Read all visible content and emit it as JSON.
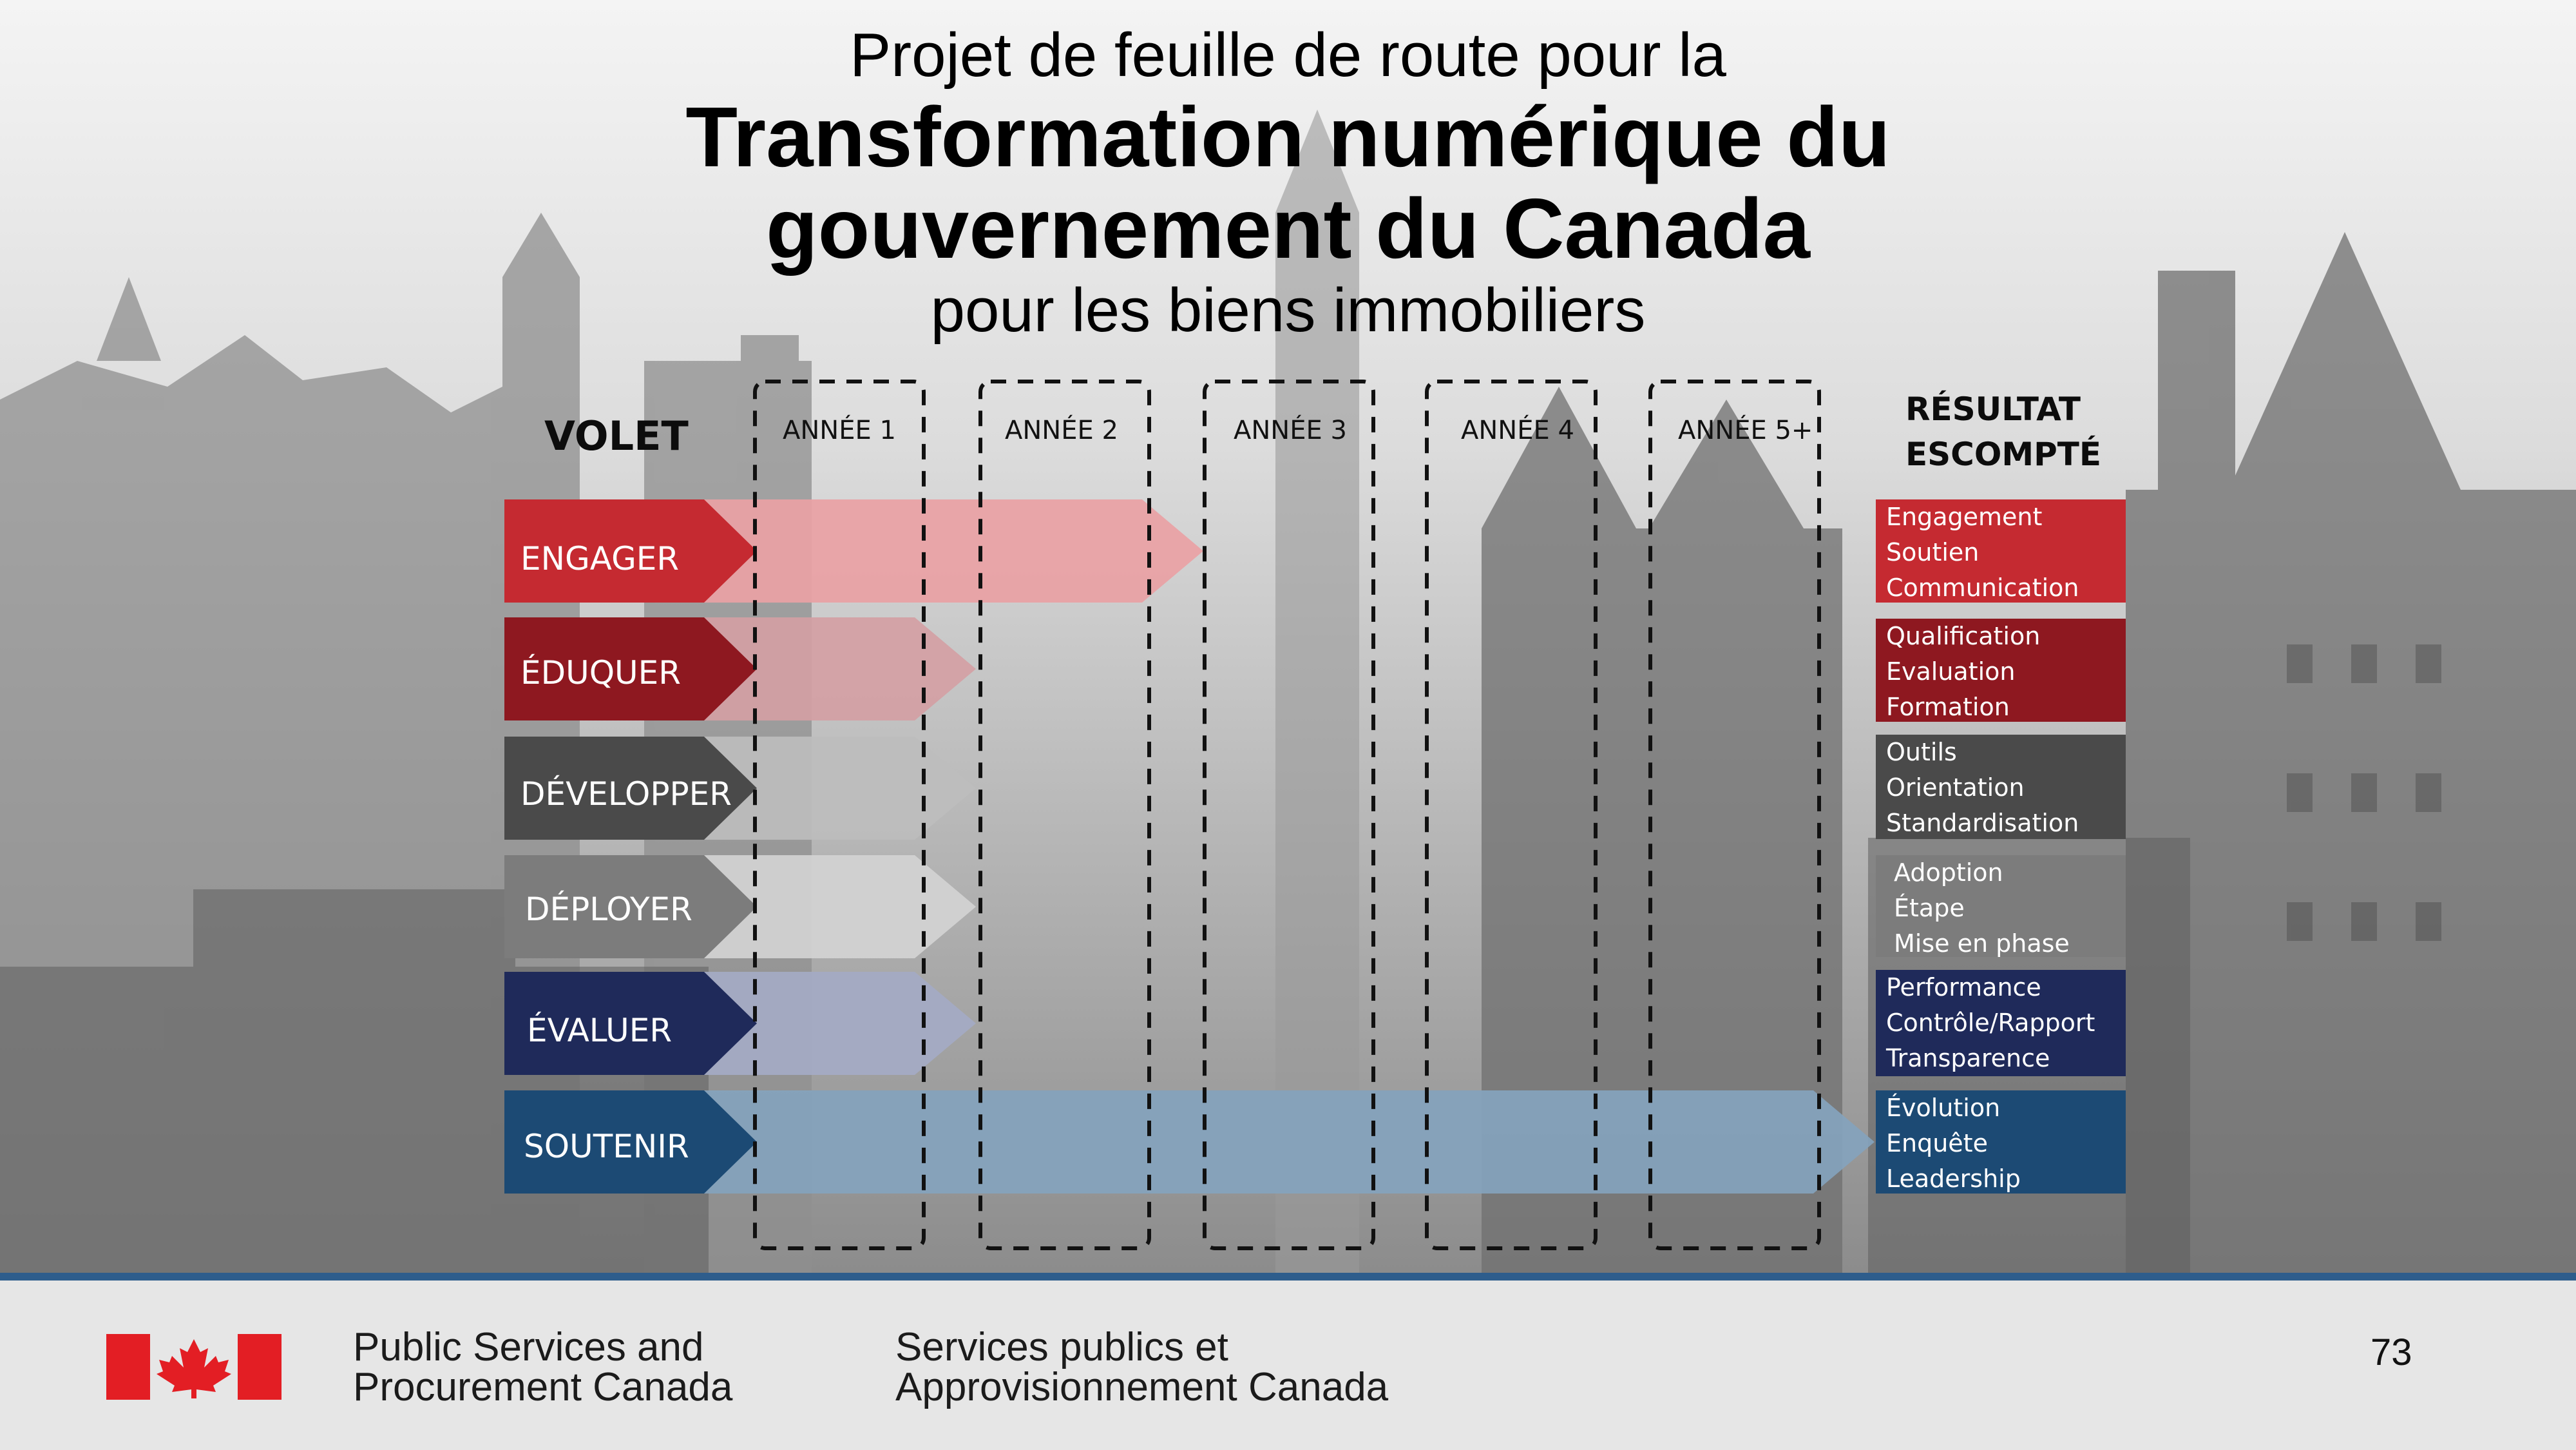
{
  "title": {
    "line1": "Projet de feuille de route pour la",
    "line2": "Transformation numérique du",
    "line3": "gouvernement du Canada",
    "line4": "pour les biens immobiliers"
  },
  "header": {
    "volet": "VOLET",
    "years": [
      "ANNÉE 1",
      "ANNÉE 2",
      "ANNÉE 3",
      "ANNÉE 4",
      "ANNÉE 5+"
    ],
    "result_line1": "RÉSULTAT",
    "result_line2": "ESCOMPTÉ"
  },
  "streams": [
    {
      "label": "ENGAGER",
      "color": "#c52a31",
      "bar_color": "#e9a1a4",
      "bar_end_year": 2,
      "results": [
        "Engagement",
        "Soutien",
        "Communication"
      ]
    },
    {
      "label": "ÉDUQUER",
      "color": "#8e1820",
      "bar_color": "#d4a0a4",
      "bar_end_year": 1,
      "results": [
        "Qualification",
        "Evaluation",
        "Formation"
      ]
    },
    {
      "label": "DÉVELOPPER",
      "color": "#4a4a4a",
      "bar_color": "#bdbdbd",
      "bar_end_year": 1,
      "results": [
        "Outils",
        "Orientation",
        "Standardisation"
      ]
    },
    {
      "label": "DÉPLOYER",
      "color": "#7c7c7c",
      "bar_color": "#d3d3d3",
      "bar_end_year": 1,
      "results": [
        "Adoption",
        "Étape",
        "Mise en phase"
      ]
    },
    {
      "label": "ÉVALUER",
      "color": "#1f2a5a",
      "bar_color": "#a4aac4",
      "bar_end_year": 1,
      "results": [
        "Performance",
        "Contrôle/Rapport",
        "Transparence"
      ]
    },
    {
      "label": "SOUTENIR",
      "color": "#1c4a74",
      "bar_color": "#84a3bd",
      "bar_end_year": 5,
      "results": [
        "Évolution",
        "Enquête",
        "Leadership"
      ]
    }
  ],
  "footer": {
    "org_en_line1": "Public Services and",
    "org_en_line2": "Procurement Canada",
    "org_fr_line1": "Services publics et",
    "org_fr_line2": "Approvisionnement Canada",
    "page_number": "73",
    "flag_color": "#e31e24"
  }
}
